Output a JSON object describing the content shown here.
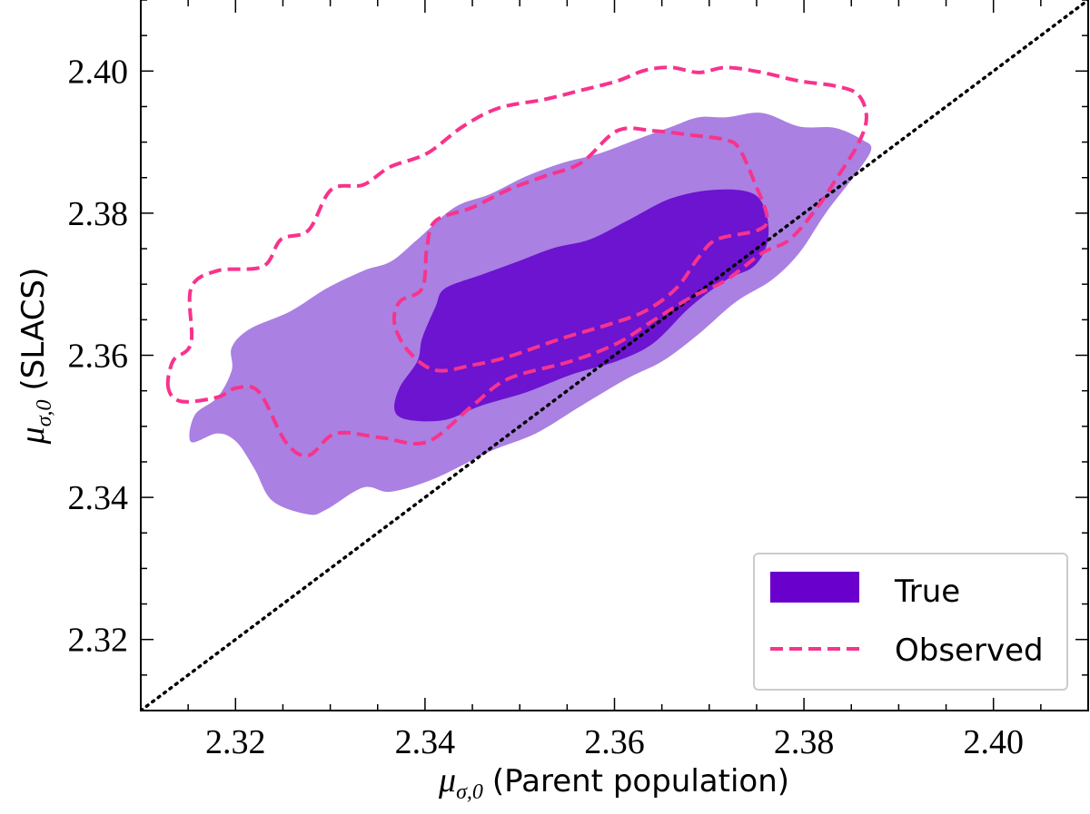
{
  "chart_data": {
    "type": "contour",
    "title": "",
    "xlabel": "μσ,0 (Parent population)",
    "xlabel_symbol": "μ",
    "xlabel_sub": "σ,0",
    "xlabel_text": "(Parent population)",
    "ylabel": "μσ,0 (SLACS)",
    "ylabel_symbol": "μ",
    "ylabel_sub": "σ,0",
    "ylabel_text": "(SLACS)",
    "xlim": [
      2.31,
      2.41
    ],
    "ylim": [
      2.31,
      2.41
    ],
    "xticks": [
      "2.32",
      "2.34",
      "2.36",
      "2.38",
      "2.40"
    ],
    "yticks": [
      "2.32",
      "2.34",
      "2.36",
      "2.38",
      "2.40"
    ],
    "grid": false,
    "legend_position": "bottom-right",
    "reference_line": {
      "name": "y = x",
      "style": "dotted",
      "color": "#000000"
    },
    "series": [
      {
        "name": "True",
        "style": "filled",
        "colors": {
          "outer": "#aa80e2",
          "inner": "#6c14d0",
          "legend": "#6a00cc"
        },
        "contours": {
          "outer": [
            [
              2.3153,
              2.3478
            ],
            [
              2.3157,
              2.3516
            ],
            [
              2.3181,
              2.3541
            ],
            [
              2.3196,
              2.3579
            ],
            [
              2.3196,
              2.3611
            ],
            [
              2.3215,
              2.3637
            ],
            [
              2.3258,
              2.3662
            ],
            [
              2.3296,
              2.3694
            ],
            [
              2.3335,
              2.3719
            ],
            [
              2.3364,
              2.3732
            ],
            [
              2.3392,
              2.3763
            ],
            [
              2.3431,
              2.3808
            ],
            [
              2.3469,
              2.3827
            ],
            [
              2.3507,
              2.3852
            ],
            [
              2.3546,
              2.3871
            ],
            [
              2.3584,
              2.3884
            ],
            [
              2.3622,
              2.3903
            ],
            [
              2.3661,
              2.3922
            ],
            [
              2.3689,
              2.3935
            ],
            [
              2.3718,
              2.3935
            ],
            [
              2.3756,
              2.3941
            ],
            [
              2.3795,
              2.3922
            ],
            [
              2.3833,
              2.392
            ],
            [
              2.3862,
              2.3903
            ],
            [
              2.3871,
              2.389
            ],
            [
              2.3857,
              2.3859
            ],
            [
              2.3824,
              2.3802
            ],
            [
              2.3795,
              2.3744
            ],
            [
              2.3766,
              2.3706
            ],
            [
              2.3728,
              2.3675
            ],
            [
              2.3689,
              2.363
            ],
            [
              2.3651,
              2.3592
            ],
            [
              2.3613,
              2.3567
            ],
            [
              2.3565,
              2.3529
            ],
            [
              2.3517,
              2.349
            ],
            [
              2.3469,
              2.3465
            ],
            [
              2.3411,
              2.3427
            ],
            [
              2.3364,
              2.3408
            ],
            [
              2.3335,
              2.3414
            ],
            [
              2.3296,
              2.3383
            ],
            [
              2.3277,
              2.3376
            ],
            [
              2.3239,
              2.3395
            ],
            [
              2.322,
              2.344
            ],
            [
              2.3201,
              2.3478
            ],
            [
              2.3181,
              2.349
            ]
          ],
          "inner": [
            [
              2.3368,
              2.3522
            ],
            [
              2.3373,
              2.3554
            ],
            [
              2.3392,
              2.3592
            ],
            [
              2.3397,
              2.3624
            ],
            [
              2.3411,
              2.3668
            ],
            [
              2.3421,
              2.3694
            ],
            [
              2.3459,
              2.3713
            ],
            [
              2.3498,
              2.3732
            ],
            [
              2.3536,
              2.3751
            ],
            [
              2.3574,
              2.3763
            ],
            [
              2.3613,
              2.3789
            ],
            [
              2.366,
              2.3821
            ],
            [
              2.3708,
              2.3833
            ],
            [
              2.3747,
              2.3827
            ],
            [
              2.3761,
              2.3795
            ],
            [
              2.3761,
              2.3757
            ],
            [
              2.3747,
              2.3725
            ],
            [
              2.3718,
              2.3706
            ],
            [
              2.368,
              2.3668
            ],
            [
              2.3641,
              2.3617
            ],
            [
              2.3603,
              2.3592
            ],
            [
              2.3555,
              2.3573
            ],
            [
              2.3507,
              2.3548
            ],
            [
              2.3459,
              2.3529
            ],
            [
              2.3421,
              2.3509
            ],
            [
              2.3383,
              2.3509
            ]
          ]
        }
      },
      {
        "name": "Observed",
        "style": "dashed",
        "colors": {
          "line": "#f8338c"
        },
        "contours": {
          "outer": [
            [
              2.3129,
              2.3554
            ],
            [
              2.3134,
              2.3592
            ],
            [
              2.3153,
              2.3617
            ],
            [
              2.3153,
              2.3694
            ],
            [
              2.3181,
              2.3719
            ],
            [
              2.3229,
              2.3725
            ],
            [
              2.3248,
              2.3763
            ],
            [
              2.3277,
              2.3776
            ],
            [
              2.3301,
              2.3833
            ],
            [
              2.3335,
              2.384
            ],
            [
              2.3363,
              2.3865
            ],
            [
              2.3402,
              2.3884
            ],
            [
              2.344,
              2.3922
            ],
            [
              2.3478,
              2.3948
            ],
            [
              2.3526,
              2.396
            ],
            [
              2.3565,
              2.3973
            ],
            [
              2.3603,
              2.3986
            ],
            [
              2.3632,
              2.4001
            ],
            [
              2.366,
              2.4005
            ],
            [
              2.3689,
              2.3998
            ],
            [
              2.3718,
              2.4005
            ],
            [
              2.3756,
              2.3998
            ],
            [
              2.3795,
              2.3986
            ],
            [
              2.3833,
              2.3979
            ],
            [
              2.3857,
              2.3967
            ],
            [
              2.3866,
              2.3935
            ],
            [
              2.3857,
              2.3897
            ],
            [
              2.3833,
              2.3846
            ],
            [
              2.3814,
              2.3808
            ],
            [
              2.3785,
              2.3763
            ],
            [
              2.3756,
              2.3744
            ],
            [
              2.3718,
              2.3706
            ],
            [
              2.368,
              2.3681
            ],
            [
              2.3641,
              2.3649
            ],
            [
              2.3603,
              2.3617
            ],
            [
              2.3555,
              2.3592
            ],
            [
              2.3488,
              2.3567
            ],
            [
              2.345,
              2.3529
            ],
            [
              2.3402,
              2.3478
            ],
            [
              2.3354,
              2.3484
            ],
            [
              2.3306,
              2.349
            ],
            [
              2.3277,
              2.3459
            ],
            [
              2.3253,
              2.3478
            ],
            [
              2.3225,
              2.3548
            ],
            [
              2.3201,
              2.3554
            ],
            [
              2.3181,
              2.3541
            ],
            [
              2.3143,
              2.3535
            ]
          ],
          "inner": [
            [
              2.3368,
              2.3643
            ],
            [
              2.3373,
              2.3675
            ],
            [
              2.3397,
              2.3694
            ],
            [
              2.3402,
              2.3751
            ],
            [
              2.3411,
              2.3789
            ],
            [
              2.345,
              2.3808
            ],
            [
              2.3488,
              2.3833
            ],
            [
              2.3526,
              2.3852
            ],
            [
              2.3565,
              2.3871
            ],
            [
              2.3603,
              2.3916
            ],
            [
              2.3641,
              2.3916
            ],
            [
              2.368,
              2.391
            ],
            [
              2.3718,
              2.3903
            ],
            [
              2.3732,
              2.389
            ],
            [
              2.3747,
              2.3846
            ],
            [
              2.3761,
              2.3795
            ],
            [
              2.3751,
              2.3776
            ],
            [
              2.3708,
              2.3763
            ],
            [
              2.3689,
              2.3738
            ],
            [
              2.3665,
              2.3694
            ],
            [
              2.3632,
              2.3662
            ],
            [
              2.3593,
              2.3643
            ],
            [
              2.3545,
              2.3624
            ],
            [
              2.3488,
              2.3598
            ],
            [
              2.345,
              2.3586
            ],
            [
              2.3411,
              2.3579
            ],
            [
              2.3383,
              2.3605
            ]
          ]
        }
      }
    ]
  }
}
